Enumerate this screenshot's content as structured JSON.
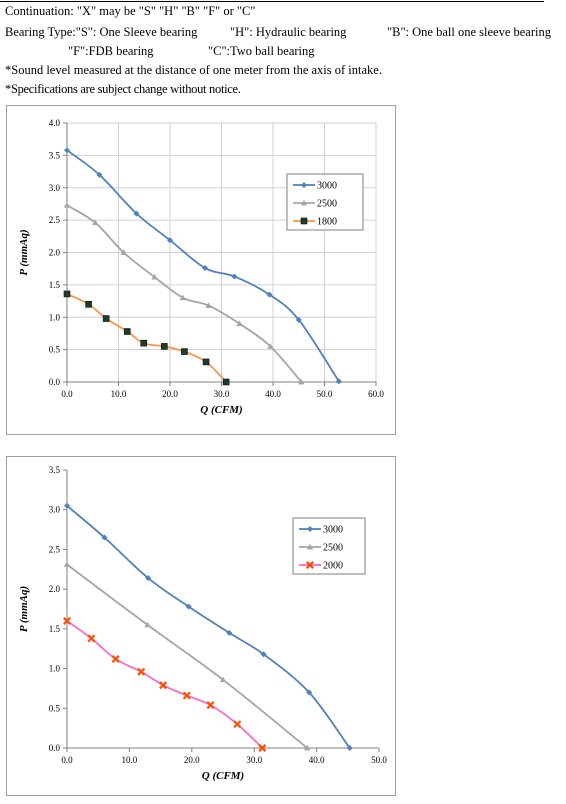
{
  "header": {
    "line1": "Continuation: \"X\" may  be  \"S\"  \"H\"  \"B\"  \"F\" or  \"C\"",
    "line2a": "Bearing Type:\"S\": One Sleeve bearing",
    "line2b": "\"H\": Hydraulic  bearing",
    "line2c": "\"B\": One ball one sleeve bearing",
    "line3a": "\"F\":FDB   bearing",
    "line3b": "\"C\":Two ball bearing",
    "line4": "*Sound level measured at the distance of one meter from the axis of intake.",
    "line5": "*Specifications are subject change without notice."
  },
  "chart_data": [
    {
      "type": "line",
      "xlabel": "Q (CFM)",
      "ylabel": "P (mmAq)",
      "xlim": [
        0,
        60
      ],
      "ylim": [
        0,
        4
      ],
      "xticks": [
        "0.0",
        "10.0",
        "20.0",
        "30.0",
        "40.0",
        "50.0",
        "60.0"
      ],
      "yticks": [
        "0.0",
        "0.5",
        "1.0",
        "1.5",
        "2.0",
        "2.5",
        "3.0",
        "3.5",
        "4.0"
      ],
      "grid": "x and y major gridlines",
      "legend": "right",
      "series": [
        {
          "name": "3000",
          "color": "#4f81bd",
          "marker": "diamond",
          "x": [
            0,
            6.3,
            13.5,
            20.0,
            26.8,
            32.5,
            39.3,
            45.0,
            52.8
          ],
          "y": [
            3.58,
            3.2,
            2.6,
            2.19,
            1.76,
            1.63,
            1.35,
            0.96,
            0.01
          ]
        },
        {
          "name": "2500",
          "color": "#a5a5a5",
          "marker": "triangle",
          "x": [
            0,
            5.5,
            11.0,
            17.0,
            22.5,
            27.5,
            33.5,
            39.5,
            45.5
          ],
          "y": [
            2.73,
            2.46,
            2.0,
            1.62,
            1.3,
            1.18,
            0.9,
            0.55,
            0.0
          ]
        },
        {
          "name": "1800",
          "color": "#f79646",
          "marker": "square",
          "x": [
            0,
            4.2,
            7.6,
            11.7,
            14.9,
            18.9,
            22.8,
            27.0,
            30.9
          ],
          "y": [
            1.36,
            1.2,
            0.98,
            0.78,
            0.6,
            0.55,
            0.47,
            0.31,
            0.0
          ]
        }
      ]
    },
    {
      "type": "line",
      "xlabel": "Q (CFM)",
      "ylabel": "P (mmAq)",
      "xlim": [
        0,
        50
      ],
      "ylim": [
        0,
        3.5
      ],
      "xticks": [
        "0.0",
        "10.0",
        "20.0",
        "30.0",
        "40.0",
        "50.0"
      ],
      "yticks": [
        "0.0",
        "0.5",
        "1.0",
        "1.5",
        "2.0",
        "2.5",
        "3.0",
        "3.5"
      ],
      "grid": "none",
      "legend": "right",
      "series": [
        {
          "name": "3000",
          "color": "#4f81bd",
          "marker": "diamond",
          "x": [
            0,
            6.0,
            13.0,
            19.5,
            26.0,
            31.5,
            38.8,
            45.3
          ],
          "y": [
            3.05,
            2.65,
            2.14,
            1.78,
            1.45,
            1.18,
            0.7,
            0.0
          ]
        },
        {
          "name": "2500",
          "color": "#a5a5a5",
          "marker": "triangle",
          "x": [
            0,
            12.9,
            25.0,
            38.5
          ],
          "y": [
            2.31,
            1.55,
            0.86,
            0.0
          ]
        },
        {
          "name": "2000",
          "color": "#ff3399",
          "marker": "x",
          "x": [
            0,
            3.9,
            7.8,
            11.9,
            15.4,
            19.2,
            23.0,
            27.3,
            31.3
          ],
          "y": [
            1.6,
            1.38,
            1.12,
            0.96,
            0.79,
            0.66,
            0.54,
            0.3,
            0.0
          ]
        }
      ]
    }
  ]
}
